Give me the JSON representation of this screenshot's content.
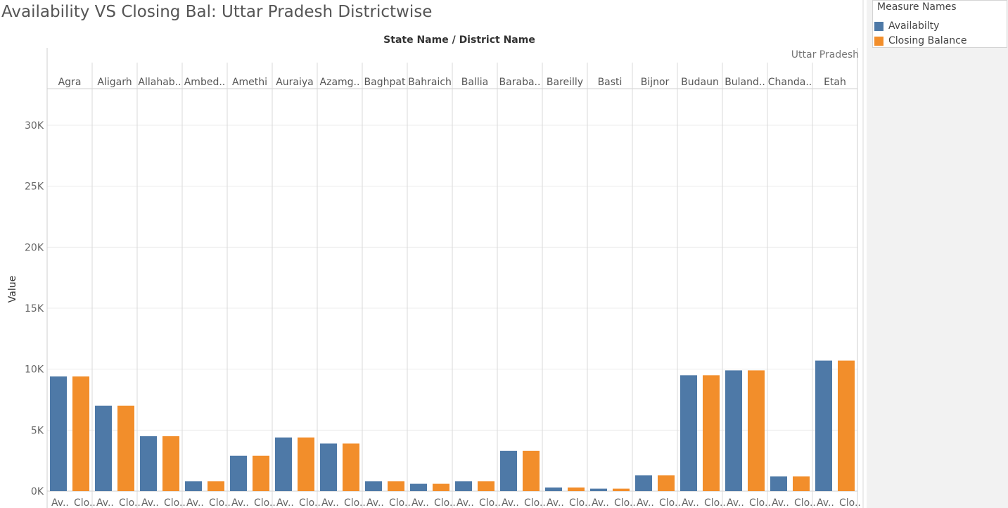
{
  "title": "Availability VS Closing Bal: Uttar Pradesh Districtwise",
  "legend": {
    "title": "Measure Names",
    "items": [
      {
        "label": "Availabilty",
        "color": "#4e79a7"
      },
      {
        "label": "Closing Balance",
        "color": "#f28e2b"
      }
    ]
  },
  "chart_data": {
    "type": "bar",
    "column_header": "State Name / District Name",
    "state": "Uttar Pradesh",
    "ylabel": "Value",
    "ylim": [
      0,
      33000
    ],
    "yticks": [
      0,
      5000,
      10000,
      15000,
      20000,
      25000,
      30000
    ],
    "ytick_labels": [
      "0K",
      "5K",
      "10K",
      "15K",
      "20K",
      "25K",
      "30K"
    ],
    "category_labels": [
      "Av..",
      "Clo.."
    ],
    "districts": [
      "Agra",
      "Aligarh",
      "Allahab..",
      "Ambed..",
      "Amethi",
      "Auraiya",
      "Azamg..",
      "Baghpat",
      "Bahraich",
      "Ballia",
      "Baraba..",
      "Bareilly",
      "Basti",
      "Bijnor",
      "Budaun",
      "Buland..",
      "Chanda..",
      "Etah"
    ],
    "series": [
      {
        "name": "Availabilty",
        "color": "#4e79a7",
        "values": [
          9400,
          7000,
          4500,
          800,
          2900,
          4400,
          3900,
          800,
          600,
          800,
          3300,
          300,
          200,
          1300,
          9500,
          9900,
          1200,
          10700
        ]
      },
      {
        "name": "Closing Balance",
        "color": "#f28e2b",
        "values": [
          9400,
          7000,
          4500,
          800,
          2900,
          4400,
          3900,
          800,
          600,
          800,
          3300,
          300,
          200,
          1300,
          9500,
          9900,
          1200,
          10700
        ]
      }
    ],
    "grid": true,
    "legend_position": "top-right"
  }
}
